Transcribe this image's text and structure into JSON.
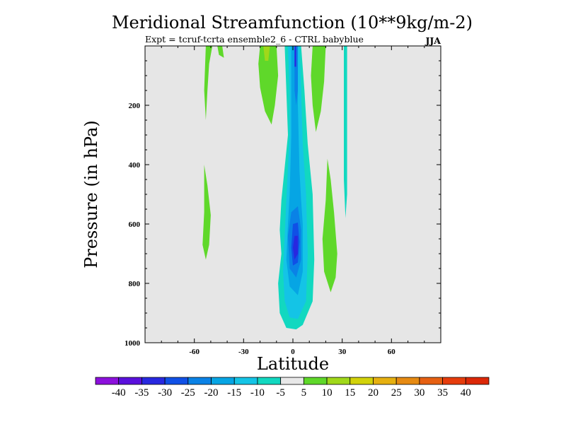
{
  "chart_data": {
    "type": "contour",
    "title": "Meridional Streamfunction (10**9kg/m-2)",
    "subtitle": "Expt = tcruf-tcrta    ensemble2_6 - CTRL babyblue",
    "season": "JJA",
    "xlabel": "Latitude",
    "ylabel": "Pressure (in hPa)",
    "xlim": [
      -90,
      90
    ],
    "ylim": [
      1000,
      0
    ],
    "x_ticks": [
      -60,
      -30,
      0,
      30,
      60
    ],
    "x_tick_labels": [
      "-60",
      "-30",
      "0",
      "30",
      "60"
    ],
    "y_ticks": [
      200,
      400,
      600,
      800,
      1000
    ],
    "y_tick_labels": [
      "200",
      "400",
      "600",
      "800",
      "1000"
    ],
    "colorbar": {
      "labels": [
        "-40",
        "-35",
        "-30",
        "-25",
        "-20",
        "-15",
        "-10",
        "-5",
        "5",
        "10",
        "15",
        "20",
        "25",
        "30",
        "35",
        "40"
      ],
      "colors": [
        "#8c10dc",
        "#5a10dc",
        "#2828e0",
        "#1050e6",
        "#0a82e6",
        "#06a5e4",
        "#14c4e6",
        "#12d8c0",
        "#e8e8e8",
        "#5fd82a",
        "#a0d81a",
        "#d2d20a",
        "#e6b010",
        "#e68a12",
        "#e66012",
        "#e63c0c",
        "#dc2808"
      ]
    },
    "features": [
      {
        "name": "central negative cell",
        "lat_range": [
          -8,
          12
        ],
        "p_range": [
          0,
          960
        ],
        "min_value": -35
      },
      {
        "name": "positive cell south upper",
        "lat_range": [
          -53,
          -40
        ],
        "p_range": [
          0,
          250
        ],
        "max_value": 10
      },
      {
        "name": "positive cell south mid",
        "lat_range": [
          -55,
          -50
        ],
        "p_range": [
          400,
          720
        ],
        "max_value": 10
      },
      {
        "name": "positive cell upper near equator",
        "lat_range": [
          -22,
          -10
        ],
        "p_range": [
          0,
          260
        ],
        "max_value": 15
      },
      {
        "name": "positive cell upper north",
        "lat_range": [
          10,
          20
        ],
        "p_range": [
          0,
          280
        ],
        "max_value": 10
      },
      {
        "name": "positive cell mid north",
        "lat_range": [
          18,
          28
        ],
        "p_range": [
          380,
          830
        ],
        "max_value": 10
      },
      {
        "name": "negative strip north",
        "lat_range": [
          30,
          33
        ],
        "p_range": [
          0,
          580
        ],
        "min_value": -10
      }
    ]
  }
}
